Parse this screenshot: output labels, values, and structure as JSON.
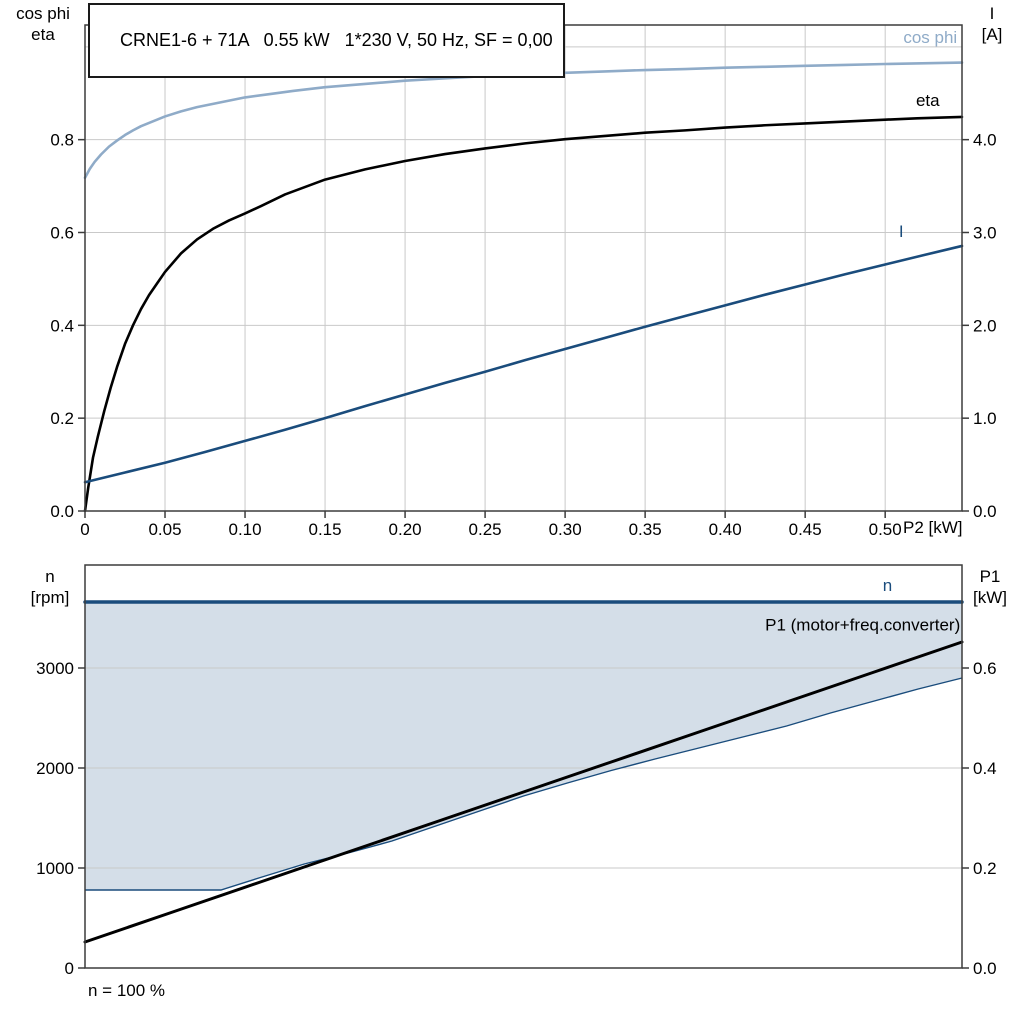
{
  "title_box": {
    "text": "CRNE1-6 + 71A   0.55 kW   1*230 V, 50 Hz, SF = 0,00"
  },
  "colors": {
    "cos_phi_blue": "#8fabc8",
    "dark_blue": "#1a4c7c",
    "black": "#000000",
    "band_fill": "#ccd8e4",
    "grid": "#c9c9c9",
    "frame": "#3c3c3c",
    "background": "#ffffff"
  },
  "labels": {
    "top_left_line1": "cos phi",
    "top_left_line2": "eta",
    "top_right_line1": "I",
    "top_right_line2": "[A]",
    "bottom_left_line1": "n",
    "bottom_left_line2": "[rpm]",
    "bottom_right_line1": "P1",
    "bottom_right_line2": "[kW]",
    "x_unit": "P2 [kW]",
    "footnote": "n = 100 %"
  },
  "chart_data": [
    {
      "type": "line",
      "title": "CRNE1-6 + 71A   0.55 kW   1*230 V, 50 Hz, SF = 0,00",
      "x_axis": {
        "label": "P2 [kW]",
        "min": 0,
        "max": 0.548,
        "ticks": [
          {
            "v": 0,
            "label": "0"
          },
          {
            "v": 0.05,
            "label": "0.05"
          },
          {
            "v": 0.1,
            "label": "0.10"
          },
          {
            "v": 0.15,
            "label": "0.15"
          },
          {
            "v": 0.2,
            "label": "0.20"
          },
          {
            "v": 0.25,
            "label": "0.25"
          },
          {
            "v": 0.3,
            "label": "0.30"
          },
          {
            "v": 0.35,
            "label": "0.35"
          },
          {
            "v": 0.4,
            "label": "0.40"
          },
          {
            "v": 0.45,
            "label": "0.45"
          },
          {
            "v": 0.5,
            "label": "0.50"
          }
        ],
        "grid": [
          0.05,
          0.1,
          0.15,
          0.2,
          0.25,
          0.3,
          0.35,
          0.4,
          0.45,
          0.5
        ]
      },
      "y_left": {
        "label": "cos phi / eta",
        "min": 0,
        "max": 1.047,
        "ticks": [
          {
            "v": 0,
            "label": "0.0"
          },
          {
            "v": 0.2,
            "label": "0.2"
          },
          {
            "v": 0.4,
            "label": "0.4"
          },
          {
            "v": 0.6,
            "label": "0.6"
          },
          {
            "v": 0.8,
            "label": "0.8"
          }
        ],
        "grid": [
          0.2,
          0.4,
          0.6,
          0.8,
          1.0
        ]
      },
      "y_right": {
        "label": "I [A]",
        "min": 0,
        "max": 5.235,
        "ticks": [
          {
            "v": 0,
            "label": "0.0"
          },
          {
            "v": 1,
            "label": "1.0"
          },
          {
            "v": 2,
            "label": "2.0"
          },
          {
            "v": 3,
            "label": "3.0"
          },
          {
            "v": 4,
            "label": "4.0"
          }
        ]
      },
      "series": [
        {
          "name": "cos phi",
          "axis": "left",
          "color": "#8fabc8",
          "width": 2.6,
          "points": [
            [
              0,
              0.718
            ],
            [
              0.003,
              0.737
            ],
            [
              0.006,
              0.752
            ],
            [
              0.01,
              0.768
            ],
            [
              0.015,
              0.785
            ],
            [
              0.02,
              0.798
            ],
            [
              0.025,
              0.81
            ],
            [
              0.03,
              0.82
            ],
            [
              0.035,
              0.829
            ],
            [
              0.04,
              0.836
            ],
            [
              0.045,
              0.843
            ],
            [
              0.05,
              0.85
            ],
            [
              0.06,
              0.861
            ],
            [
              0.07,
              0.87
            ],
            [
              0.08,
              0.877
            ],
            [
              0.09,
              0.884
            ],
            [
              0.1,
              0.891
            ],
            [
              0.115,
              0.898
            ],
            [
              0.13,
              0.905
            ],
            [
              0.15,
              0.913
            ],
            [
              0.175,
              0.92
            ],
            [
              0.2,
              0.927
            ],
            [
              0.225,
              0.932
            ],
            [
              0.25,
              0.937
            ],
            [
              0.275,
              0.941
            ],
            [
              0.3,
              0.944
            ],
            [
              0.325,
              0.947
            ],
            [
              0.35,
              0.95
            ],
            [
              0.375,
              0.952
            ],
            [
              0.4,
              0.955
            ],
            [
              0.425,
              0.957
            ],
            [
              0.45,
              0.959
            ],
            [
              0.475,
              0.961
            ],
            [
              0.5,
              0.963
            ],
            [
              0.548,
              0.966
            ]
          ]
        },
        {
          "name": "eta",
          "axis": "left",
          "color": "#000000",
          "width": 2.6,
          "points": [
            [
              0,
              0
            ],
            [
              0.002,
              0.05
            ],
            [
              0.005,
              0.115
            ],
            [
              0.008,
              0.16
            ],
            [
              0.012,
              0.215
            ],
            [
              0.016,
              0.265
            ],
            [
              0.02,
              0.31
            ],
            [
              0.025,
              0.36
            ],
            [
              0.03,
              0.4
            ],
            [
              0.035,
              0.435
            ],
            [
              0.04,
              0.465
            ],
            [
              0.045,
              0.49
            ],
            [
              0.05,
              0.515
            ],
            [
              0.06,
              0.555
            ],
            [
              0.07,
              0.585
            ],
            [
              0.08,
              0.608
            ],
            [
              0.09,
              0.626
            ],
            [
              0.1,
              0.641
            ],
            [
              0.11,
              0.657
            ],
            [
              0.125,
              0.682
            ],
            [
              0.15,
              0.714
            ],
            [
              0.175,
              0.736
            ],
            [
              0.2,
              0.754
            ],
            [
              0.225,
              0.769
            ],
            [
              0.25,
              0.781
            ],
            [
              0.275,
              0.792
            ],
            [
              0.3,
              0.801
            ],
            [
              0.325,
              0.808
            ],
            [
              0.35,
              0.815
            ],
            [
              0.375,
              0.82
            ],
            [
              0.4,
              0.826
            ],
            [
              0.425,
              0.831
            ],
            [
              0.45,
              0.835
            ],
            [
              0.475,
              0.839
            ],
            [
              0.5,
              0.843
            ],
            [
              0.52,
              0.846
            ],
            [
              0.548,
              0.849
            ]
          ]
        },
        {
          "name": "I",
          "axis": "right",
          "color": "#1a4c7c",
          "width": 2.6,
          "points": [
            [
              0,
              0.31
            ],
            [
              0.025,
              0.415
            ],
            [
              0.05,
              0.52
            ],
            [
              0.075,
              0.635
            ],
            [
              0.1,
              0.755
            ],
            [
              0.125,
              0.875
            ],
            [
              0.15,
              1.0
            ],
            [
              0.175,
              1.13
            ],
            [
              0.2,
              1.255
            ],
            [
              0.225,
              1.38
            ],
            [
              0.25,
              1.5
            ],
            [
              0.275,
              1.625
            ],
            [
              0.3,
              1.745
            ],
            [
              0.325,
              1.865
            ],
            [
              0.35,
              1.985
            ],
            [
              0.375,
              2.1
            ],
            [
              0.4,
              2.215
            ],
            [
              0.425,
              2.33
            ],
            [
              0.45,
              2.44
            ],
            [
              0.475,
              2.55
            ],
            [
              0.5,
              2.655
            ],
            [
              0.525,
              2.76
            ],
            [
              0.548,
              2.855
            ]
          ]
        }
      ],
      "annotations": [
        {
          "text": "cos phi",
          "axis": "left",
          "x": 0.545,
          "y": 1.008,
          "anchor": "end",
          "color": "#8fabc8"
        },
        {
          "text": "eta",
          "axis": "left",
          "x": 0.534,
          "y": 0.872,
          "anchor": "end",
          "color": "#000000"
        },
        {
          "text": "I",
          "axis": "left",
          "x": 0.51,
          "y": 0.59,
          "anchor": "middle",
          "color": "#1a4c7c"
        }
      ]
    },
    {
      "type": "line",
      "title": "",
      "x_axis": {
        "label": "n = 100 %",
        "min": 0,
        "max": 1,
        "ticks": [],
        "grid": []
      },
      "y_left": {
        "label": "n [rpm]",
        "min": 0,
        "max": 4030,
        "ticks": [
          {
            "v": 0,
            "label": "0"
          },
          {
            "v": 1000,
            "label": "1000"
          },
          {
            "v": 2000,
            "label": "2000"
          },
          {
            "v": 3000,
            "label": "3000"
          }
        ],
        "grid": [
          1000,
          2000,
          3000
        ]
      },
      "y_right": {
        "label": "P1 [kW]",
        "min": 0,
        "max": 0.806,
        "ticks": [
          {
            "v": 0,
            "label": "0.0"
          },
          {
            "v": 0.2,
            "label": "0.2"
          },
          {
            "v": 0.4,
            "label": "0.4"
          },
          {
            "v": 0.6,
            "label": "0.6"
          }
        ]
      },
      "band": {
        "upper": 3660,
        "lower_axis": "left",
        "fill": "#ccd8e4",
        "edge_color": "#1a4c7c",
        "lower_points": [
          [
            0,
            780
          ],
          [
            0.155,
            780
          ],
          [
            0.2,
            905
          ],
          [
            0.25,
            1040
          ],
          [
            0.3,
            1150
          ],
          [
            0.35,
            1270
          ],
          [
            0.4,
            1420
          ],
          [
            0.45,
            1570
          ],
          [
            0.5,
            1720
          ],
          [
            0.55,
            1850
          ],
          [
            0.6,
            1975
          ],
          [
            0.65,
            2090
          ],
          [
            0.7,
            2200
          ],
          [
            0.75,
            2310
          ],
          [
            0.8,
            2420
          ],
          [
            0.85,
            2550
          ],
          [
            0.9,
            2670
          ],
          [
            0.95,
            2790
          ],
          [
            1,
            2900
          ]
        ]
      },
      "series": [
        {
          "name": "n",
          "axis": "left",
          "color": "#1a4c7c",
          "width": 3.5,
          "points": [
            [
              0,
              3660
            ],
            [
              1,
              3660
            ]
          ]
        },
        {
          "name": "P1 (motor+freq.converter)",
          "axis": "right",
          "color": "#000000",
          "width": 3,
          "points": [
            [
              0,
              0.052
            ],
            [
              0.1,
              0.112
            ],
            [
              0.2,
              0.172
            ],
            [
              0.3,
              0.232
            ],
            [
              0.4,
              0.292
            ],
            [
              0.5,
              0.352
            ],
            [
              0.6,
              0.412
            ],
            [
              0.7,
              0.472
            ],
            [
              0.8,
              0.532
            ],
            [
              0.9,
              0.592
            ],
            [
              1,
              0.652
            ]
          ]
        }
      ],
      "annotations": [
        {
          "text": "n",
          "axis": "left",
          "x": 0.915,
          "y": 3770,
          "anchor": "middle",
          "color": "#1a4c7c"
        },
        {
          "text": "P1 (motor+freq.converter)",
          "axis": "right",
          "x": 0.998,
          "y": 0.675,
          "anchor": "end",
          "color": "#000000"
        }
      ]
    }
  ]
}
